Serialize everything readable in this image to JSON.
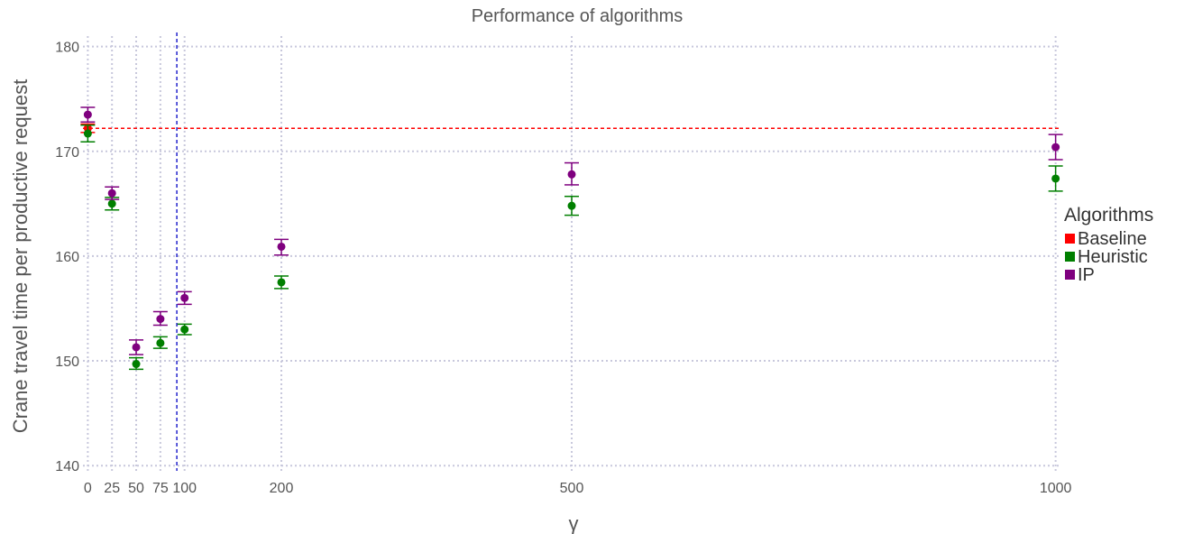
{
  "chart_data": {
    "type": "scatter",
    "title": "Performance of algorithms",
    "xlabel": "γ",
    "ylabel": "Crane travel time per productive request",
    "xlim": [
      -5,
      1005
    ],
    "ylim": [
      139.5,
      181
    ],
    "x_ticks": [
      0,
      25,
      50,
      75,
      100,
      200,
      500,
      1000
    ],
    "x_tick_labels": [
      "0",
      "25",
      "50",
      "75",
      "100",
      "200",
      "500",
      "1000"
    ],
    "y_ticks": [
      140,
      150,
      160,
      170,
      180
    ],
    "y_tick_labels": [
      "140",
      "150",
      "160",
      "170",
      "180"
    ],
    "grid": true,
    "legend": {
      "title": "Algorithms",
      "placement": "right",
      "entries": [
        "Baseline",
        "Heuristic",
        "IP"
      ]
    },
    "reference_lines": {
      "horizontal_baseline_y": 172.2,
      "vertical_x": 92
    },
    "series": [
      {
        "name": "Baseline",
        "color": "#ff0000",
        "points": [
          {
            "x": 0,
            "y": 172.2,
            "ylow": 171.8,
            "yhigh": 172.6
          }
        ]
      },
      {
        "name": "Heuristic",
        "color": "#007f00",
        "points": [
          {
            "x": 0,
            "y": 171.7,
            "ylow": 170.9,
            "yhigh": 172.5
          },
          {
            "x": 25,
            "y": 165.0,
            "ylow": 164.4,
            "yhigh": 165.6
          },
          {
            "x": 50,
            "y": 149.7,
            "ylow": 149.2,
            "yhigh": 150.3
          },
          {
            "x": 75,
            "y": 151.7,
            "ylow": 151.2,
            "yhigh": 152.3
          },
          {
            "x": 100,
            "y": 153.0,
            "ylow": 152.5,
            "yhigh": 153.5
          },
          {
            "x": 200,
            "y": 157.5,
            "ylow": 156.9,
            "yhigh": 158.1
          },
          {
            "x": 500,
            "y": 164.8,
            "ylow": 163.9,
            "yhigh": 165.7
          },
          {
            "x": 1000,
            "y": 167.4,
            "ylow": 166.2,
            "yhigh": 168.6
          }
        ]
      },
      {
        "name": "IP",
        "color": "#7f007f",
        "points": [
          {
            "x": 0,
            "y": 173.5,
            "ylow": 172.8,
            "yhigh": 174.2
          },
          {
            "x": 25,
            "y": 166.0,
            "ylow": 165.4,
            "yhigh": 166.6
          },
          {
            "x": 50,
            "y": 151.3,
            "ylow": 150.6,
            "yhigh": 152.0
          },
          {
            "x": 75,
            "y": 154.0,
            "ylow": 153.4,
            "yhigh": 154.7
          },
          {
            "x": 100,
            "y": 156.0,
            "ylow": 155.4,
            "yhigh": 156.6
          },
          {
            "x": 200,
            "y": 160.9,
            "ylow": 160.1,
            "yhigh": 161.6
          },
          {
            "x": 500,
            "y": 167.8,
            "ylow": 166.8,
            "yhigh": 168.9
          },
          {
            "x": 1000,
            "y": 170.4,
            "ylow": 169.2,
            "yhigh": 171.6
          }
        ]
      }
    ]
  }
}
